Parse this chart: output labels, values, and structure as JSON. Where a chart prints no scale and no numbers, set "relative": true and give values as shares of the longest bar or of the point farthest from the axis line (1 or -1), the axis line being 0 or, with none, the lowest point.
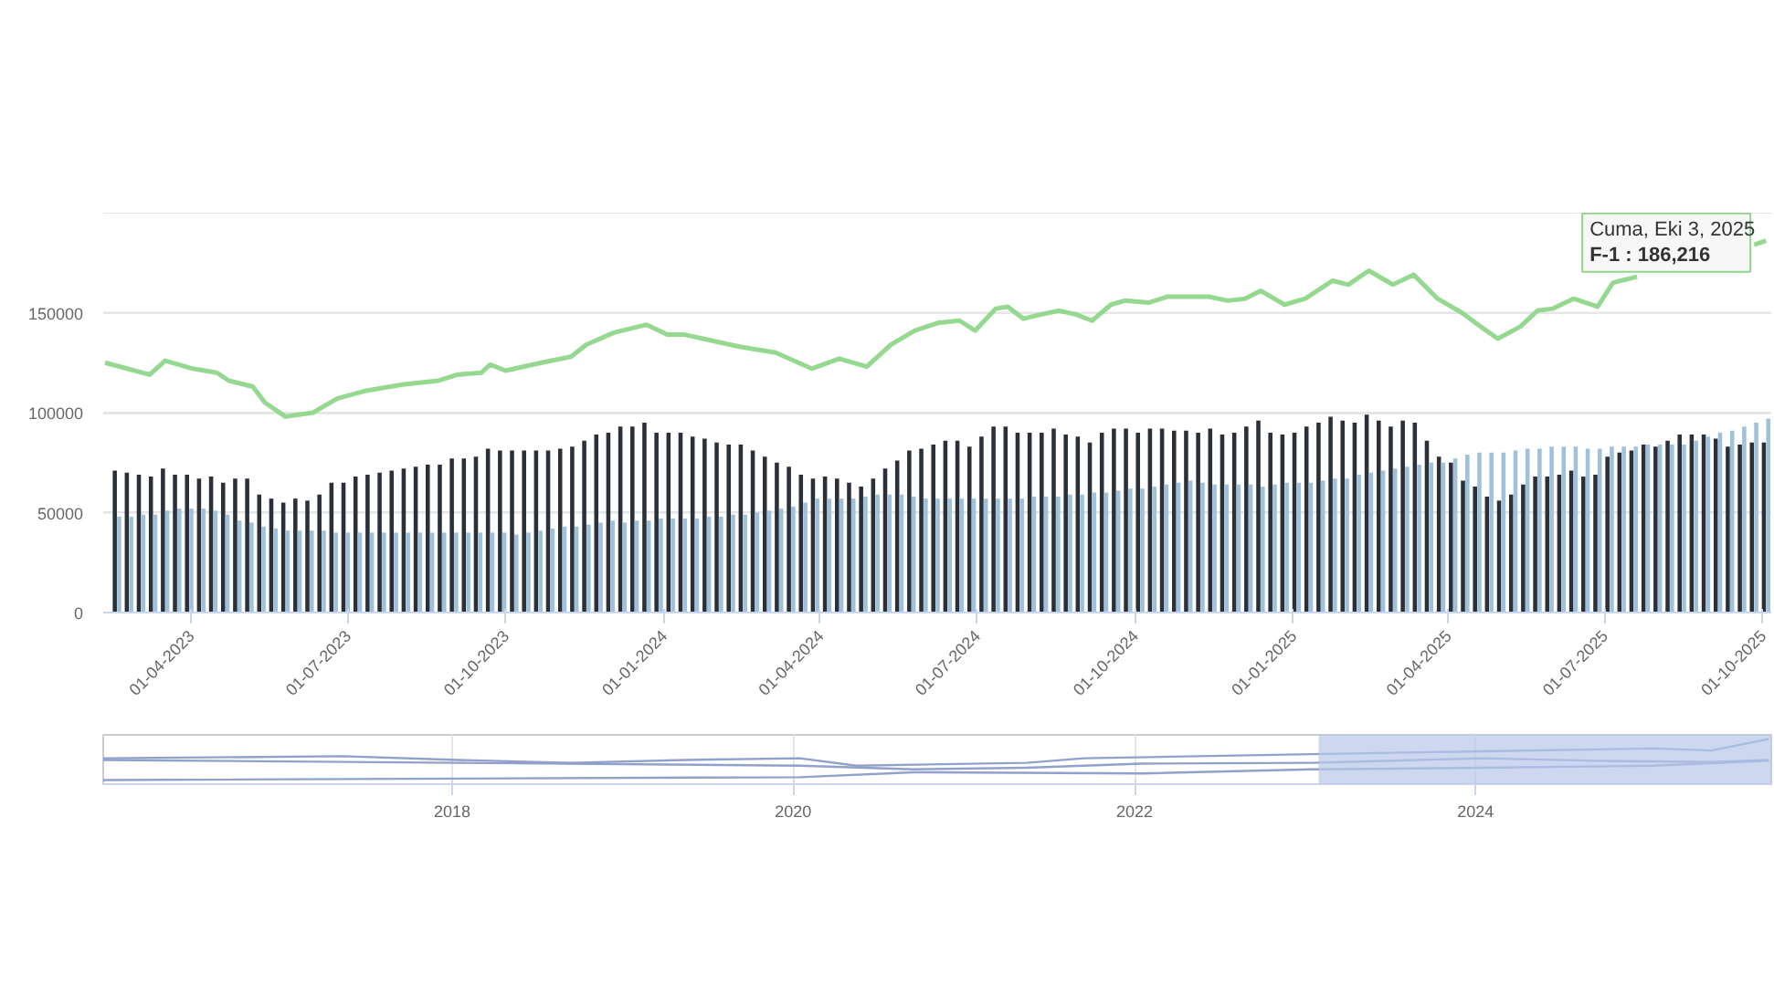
{
  "chart_data": [
    {
      "type": "bar",
      "x": [
        "2023-02-17",
        "2023-02-24",
        "2023-03-03",
        "2023-03-10",
        "2023-03-17",
        "2023-03-24",
        "2023-03-31",
        "2023-04-07",
        "2023-04-14",
        "2023-04-21",
        "2023-04-28",
        "2023-05-05",
        "2023-05-12",
        "2023-05-19",
        "2023-05-26",
        "2023-06-02",
        "2023-06-09",
        "2023-06-16",
        "2023-06-23",
        "2023-06-30",
        "2023-07-07",
        "2023-07-14",
        "2023-07-21",
        "2023-07-28",
        "2023-08-04",
        "2023-08-11",
        "2023-08-18",
        "2023-08-25",
        "2023-09-01",
        "2023-09-08",
        "2023-09-15",
        "2023-09-22",
        "2023-09-29",
        "2023-10-06",
        "2023-10-13",
        "2023-10-20",
        "2023-10-27",
        "2023-11-03",
        "2023-11-10",
        "2023-11-17",
        "2023-11-24",
        "2023-12-01",
        "2023-12-08",
        "2023-12-15",
        "2023-12-22",
        "2023-12-29",
        "2024-01-05",
        "2024-01-12",
        "2024-01-19",
        "2024-01-26",
        "2024-02-02",
        "2024-02-09",
        "2024-02-16",
        "2024-02-23",
        "2024-03-01",
        "2024-03-08",
        "2024-03-15",
        "2024-03-22",
        "2024-03-29",
        "2024-04-05",
        "2024-04-12",
        "2024-04-19",
        "2024-04-26",
        "2024-05-03",
        "2024-05-10",
        "2024-05-17",
        "2024-05-24",
        "2024-05-31",
        "2024-06-07",
        "2024-06-14",
        "2024-06-21",
        "2024-06-28",
        "2024-07-05",
        "2024-07-12",
        "2024-07-19",
        "2024-07-26",
        "2024-08-02",
        "2024-08-09",
        "2024-08-16",
        "2024-08-23",
        "2024-08-30",
        "2024-09-06",
        "2024-09-13",
        "2024-09-20",
        "2024-09-27",
        "2024-10-04",
        "2024-10-11",
        "2024-10-18",
        "2024-10-25",
        "2024-11-01",
        "2024-11-08",
        "2024-11-15",
        "2024-11-22",
        "2024-11-29",
        "2024-12-06",
        "2024-12-13",
        "2024-12-20",
        "2024-12-27",
        "2025-01-03",
        "2025-01-10",
        "2025-01-17",
        "2025-01-24",
        "2025-01-31",
        "2025-02-07",
        "2025-02-14",
        "2025-02-21",
        "2025-02-28",
        "2025-03-07",
        "2025-03-14",
        "2025-03-21",
        "2025-03-28",
        "2025-04-04",
        "2025-04-11",
        "2025-04-18",
        "2025-04-25",
        "2025-05-02",
        "2025-05-09",
        "2025-05-16",
        "2025-05-23",
        "2025-05-30",
        "2025-06-06",
        "2025-06-13",
        "2025-06-20",
        "2025-06-27",
        "2025-07-04",
        "2025-07-11",
        "2025-07-18",
        "2025-07-25",
        "2025-08-01",
        "2025-08-08",
        "2025-08-15",
        "2025-08-22",
        "2025-08-29",
        "2025-09-05",
        "2025-09-12",
        "2025-09-19",
        "2025-09-26",
        "2025-10-03"
      ],
      "series": [
        {
          "color": "#2b2f38",
          "values": [
            71000,
            70000,
            69000,
            68000,
            72000,
            69000,
            69000,
            67000,
            68000,
            65000,
            67000,
            67000,
            59000,
            57000,
            55000,
            57000,
            56000,
            59000,
            65000,
            65000,
            68000,
            69000,
            70000,
            71000,
            72000,
            73000,
            74000,
            74000,
            77000,
            77000,
            78000,
            82000,
            81000,
            81000,
            81000,
            81000,
            81000,
            82000,
            83000,
            86000,
            89000,
            90000,
            93000,
            93000,
            95000,
            90000,
            90000,
            90000,
            88000,
            87000,
            85000,
            84000,
            84000,
            81000,
            78000,
            75000,
            73000,
            69000,
            67000,
            68000,
            67000,
            65000,
            63000,
            67000,
            72000,
            76000,
            81000,
            82000,
            84000,
            86000,
            86000,
            83000,
            88000,
            93000,
            93000,
            90000,
            90000,
            90000,
            92000,
            89000,
            88000,
            85000,
            90000,
            92000,
            92000,
            90000,
            92000,
            92000,
            91000,
            91000,
            90000,
            92000,
            89000,
            90000,
            93000,
            96000,
            90000,
            89000,
            90000,
            93000,
            95000,
            98000,
            96000,
            95000,
            99000,
            96000,
            93000,
            96000,
            95000,
            86000,
            78000,
            75000,
            66000,
            63000,
            58000,
            56000,
            59000,
            64000,
            68000,
            68000,
            69000,
            71000,
            68000,
            69000,
            78000,
            80000,
            81000,
            84000,
            83000,
            86000,
            89000,
            89000,
            89000,
            87000,
            83000,
            84000,
            85000,
            85000
          ]
        },
        {
          "color": "#9fc2da",
          "values": [
            48000,
            48000,
            49000,
            49000,
            51000,
            52000,
            52000,
            52000,
            51000,
            49000,
            46000,
            45000,
            43000,
            42000,
            41000,
            41000,
            41000,
            41000,
            40000,
            40000,
            40000,
            40000,
            40000,
            40000,
            40000,
            40000,
            40000,
            40000,
            40000,
            40000,
            40000,
            40000,
            40000,
            39000,
            40000,
            41000,
            42000,
            43000,
            43000,
            44000,
            45000,
            46000,
            45000,
            46000,
            46000,
            47000,
            47000,
            47000,
            47000,
            48000,
            48000,
            49000,
            49000,
            50000,
            51000,
            52000,
            53000,
            55000,
            57000,
            57000,
            57000,
            57000,
            58000,
            59000,
            59000,
            59000,
            58000,
            57000,
            57000,
            57000,
            57000,
            57000,
            57000,
            57000,
            57000,
            57000,
            58000,
            58000,
            58000,
            59000,
            59000,
            60000,
            60000,
            61000,
            62000,
            62000,
            63000,
            64000,
            65000,
            66000,
            65000,
            64000,
            64000,
            64000,
            64000,
            63000,
            64000,
            65000,
            65000,
            65000,
            66000,
            67000,
            67000,
            69000,
            70000,
            71000,
            72000,
            73000,
            74000,
            75000,
            75000,
            77000,
            79000,
            80000,
            80000,
            80000,
            81000,
            82000,
            82000,
            83000,
            83000,
            83000,
            82000,
            82000,
            83000,
            83000,
            83000,
            84000,
            84000,
            84000,
            84000,
            86000,
            88000,
            90000,
            91000,
            93000,
            95000,
            97000
          ]
        },
        {
          "type": "line",
          "color": "#8fd68a",
          "x": [
            "2023-02-10",
            "2023-03-08",
            "2023-03-17",
            "2023-04-02",
            "2023-04-16",
            "2023-04-23",
            "2023-05-07",
            "2023-05-14",
            "2023-05-26",
            "2023-06-11",
            "2023-06-25",
            "2023-07-12",
            "2023-08-02",
            "2023-08-23",
            "2023-09-03",
            "2023-09-17",
            "2023-09-22",
            "2023-10-01",
            "2023-10-22",
            "2023-11-08",
            "2023-11-17",
            "2023-12-03",
            "2023-12-22",
            "2024-01-03",
            "2024-01-13",
            "2024-02-14",
            "2024-03-06",
            "2024-03-27",
            "2024-04-12",
            "2024-04-28",
            "2024-05-12",
            "2024-05-26",
            "2024-06-09",
            "2024-06-21",
            "2024-06-30",
            "2024-07-12",
            "2024-07-19",
            "2024-07-28",
            "2024-08-07",
            "2024-08-18",
            "2024-08-28",
            "2024-09-06",
            "2024-09-17",
            "2024-09-25",
            "2024-10-09",
            "2024-10-20",
            "2024-11-03",
            "2024-11-13",
            "2024-11-24",
            "2024-12-04",
            "2024-12-13",
            "2024-12-27",
            "2025-01-08",
            "2025-01-24",
            "2025-02-02",
            "2025-02-14",
            "2025-02-28",
            "2025-03-12",
            "2025-03-26",
            "2025-04-09",
            "2025-04-20",
            "2025-04-30",
            "2025-05-13",
            "2025-05-23",
            "2025-06-01",
            "2025-06-13",
            "2025-06-27",
            "2025-07-06",
            "2025-07-20",
            "2025-08-20",
            "2025-09-26",
            "2025-10-03"
          ],
          "values": [
            125000,
            119000,
            126000,
            122000,
            120000,
            116000,
            113000,
            105000,
            98000,
            100000,
            107000,
            111000,
            114000,
            116000,
            119000,
            120000,
            124000,
            121000,
            125000,
            128000,
            134000,
            140000,
            144000,
            139000,
            139000,
            133000,
            130000,
            122000,
            127000,
            123000,
            134000,
            141000,
            145000,
            146000,
            141000,
            152000,
            153000,
            147000,
            149000,
            151000,
            149000,
            146000,
            154000,
            156000,
            155000,
            158000,
            158000,
            158000,
            156000,
            157000,
            161000,
            154000,
            157000,
            166000,
            164000,
            171000,
            164000,
            169000,
            157000,
            150000,
            143000,
            137000,
            143000,
            151000,
            152000,
            157000,
            153000,
            165000,
            168000,
            null,
            184000,
            186000
          ]
        }
      ],
      "xlim": [
        "2023-02-09",
        "2025-10-06"
      ],
      "xticks": [
        {
          "value": "2023-04-01",
          "label": "01-04-2023"
        },
        {
          "value": "2023-07-01",
          "label": "01-07-2023"
        },
        {
          "value": "2023-10-01",
          "label": "01-10-2023"
        },
        {
          "value": "2024-01-01",
          "label": "01-01-2024"
        },
        {
          "value": "2024-04-01",
          "label": "01-04-2024"
        },
        {
          "value": "2024-07-01",
          "label": "01-07-2024"
        },
        {
          "value": "2024-10-01",
          "label": "01-10-2024"
        },
        {
          "value": "2025-01-01",
          "label": "01-01-2025"
        },
        {
          "value": "2025-04-01",
          "label": "01-04-2025"
        },
        {
          "value": "2025-07-01",
          "label": "01-07-2025"
        },
        {
          "value": "2025-10-01",
          "label": "01-10-2025"
        }
      ],
      "ylim": [
        0,
        200000
      ],
      "yticks": [
        0,
        50000,
        100000,
        150000,
        {
          "value": 200000,
          "label": null
        }
      ],
      "grid": "y",
      "annotations": [
        {
          "text": "Cuma, Eki 3, 2025",
          "x": "2025-10-03",
          "y": 186000
        },
        {
          "text": "F-1 : 186,216",
          "x": "2025-10-03",
          "y": 186000
        }
      ]
    },
    {
      "type": "line",
      "relative": true,
      "series": [
        {
          "color": "#8c9cc8",
          "x": [
            "2015-12-16",
            "2017-05-12",
            "2018-01-12",
            "2018-09-12",
            "2019-05-15",
            "2020-01-15",
            "2020-05-15",
            "2021-05-15",
            "2021-09-15",
            "2022-05-15",
            "2023-01-15",
            "2024-01-15",
            "2025-01-15",
            "2025-05-20",
            "2025-09-20"
          ],
          "values": [
            0.53,
            0.58,
            0.49,
            0.42,
            0.49,
            0.53,
            0.35,
            0.42,
            0.53,
            0.58,
            0.63,
            0.7,
            0.77,
            0.72,
            1.0
          ]
        },
        {
          "color": "#8c9cc8",
          "x": [
            "2015-12-16",
            "2018-01-12",
            "2020-01-15",
            "2020-09-15",
            "2021-05-15",
            "2022-01-15",
            "2023-01-15",
            "2024-01-15",
            "2024-09-15",
            "2025-05-20",
            "2025-09-20"
          ],
          "values": [
            0.49,
            0.42,
            0.35,
            0.26,
            0.3,
            0.4,
            0.42,
            0.53,
            0.47,
            0.44,
            0.49
          ]
        },
        {
          "color": "#8c9cc8",
          "x": [
            "2015-12-16",
            "2020-01-15",
            "2020-09-15",
            "2022-01-15",
            "2023-01-15",
            "2024-01-15",
            "2025-01-15",
            "2025-09-20"
          ],
          "values": [
            0.0,
            0.07,
            0.19,
            0.16,
            0.26,
            0.3,
            0.35,
            0.47
          ]
        }
      ],
      "xlim": [
        "2015-12-16",
        "2025-09-25"
      ],
      "xticks": [
        {
          "value": "2018-01-01",
          "label": "2018"
        },
        {
          "value": "2020-01-01",
          "label": "2020"
        },
        {
          "value": "2022-01-01",
          "label": "2022"
        },
        {
          "value": "2024-01-01",
          "label": "2024"
        }
      ],
      "grid": "x",
      "bands": [
        {
          "axis": "x",
          "from": "2023-01-30",
          "to": "2025-09-25",
          "color": "#b8c6e8"
        }
      ]
    }
  ]
}
